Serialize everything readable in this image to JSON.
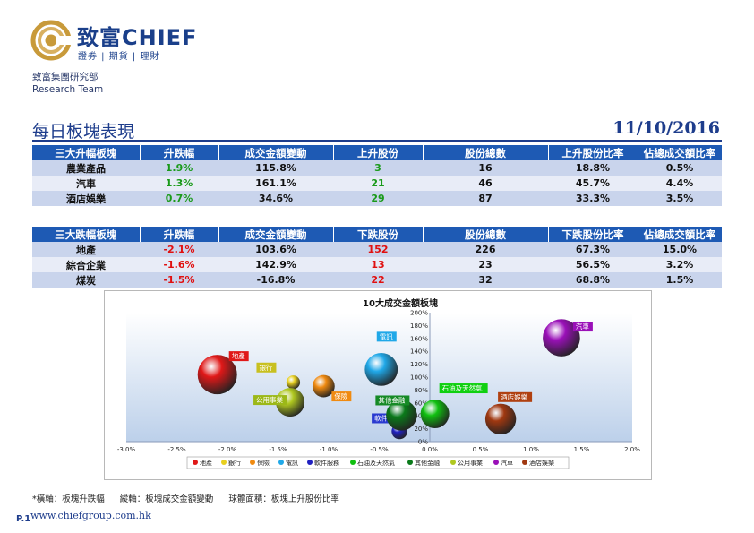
{
  "header": {
    "brand_cn": "致富",
    "brand_en": "CHIEF",
    "tagline": "證券 | 期貨 | 理財",
    "dept_cn": "致富集團研究部",
    "dept_en": "Research Team"
  },
  "page": {
    "title": "每日板塊表現",
    "date": "11/10/2016"
  },
  "top_table": {
    "headers": [
      "三大升幅板塊",
      "升跌幅",
      "成交金額變動",
      "上升股份",
      "股份總數",
      "上升股份比率",
      "佔總成交額比率"
    ],
    "rows": [
      [
        "農業產品",
        "1.9%",
        "115.8%",
        "3",
        "16",
        "18.8%",
        "0.5%"
      ],
      [
        "汽車",
        "1.3%",
        "161.1%",
        "21",
        "46",
        "45.7%",
        "4.4%"
      ],
      [
        "酒店娛樂",
        "0.7%",
        "34.6%",
        "29",
        "87",
        "33.3%",
        "3.5%"
      ]
    ]
  },
  "bottom_table": {
    "headers": [
      "三大跌幅板塊",
      "升跌幅",
      "成交金額變動",
      "下跌股份",
      "股份總數",
      "下跌股份比率",
      "佔總成交額比率"
    ],
    "rows": [
      [
        "地產",
        "-2.1%",
        "103.6%",
        "152",
        "226",
        "67.3%",
        "15.0%"
      ],
      [
        "綜合企業",
        "-1.6%",
        "142.9%",
        "13",
        "23",
        "56.5%",
        "3.2%"
      ],
      [
        "煤炭",
        "-1.5%",
        "-16.8%",
        "22",
        "32",
        "68.8%",
        "1.5%"
      ]
    ]
  },
  "colors": {
    "header_blue": "#1e5ab4",
    "title_blue": "#1e3d8c",
    "up_green": "#1a9a1a",
    "down_red": "#e01010"
  },
  "chart_data": {
    "type": "scatter",
    "title": "10大成交金額板塊",
    "xlim": [
      -0.03,
      0.02
    ],
    "ylim": [
      0,
      2.0
    ],
    "x_ticks": [
      "-3.0%",
      "-2.5%",
      "-2.0%",
      "-1.5%",
      "-1.0%",
      "-0.5%",
      "0.0%",
      "0.5%",
      "1.0%",
      "1.5%",
      "2.0%"
    ],
    "y_ticks": [
      "0%",
      "20%",
      "40%",
      "60%",
      "80%",
      "100%",
      "120%",
      "140%",
      "160%",
      "180%",
      "200%"
    ],
    "legend_position": "bottom",
    "series": [
      {
        "name": "地產",
        "x": -0.021,
        "y": 1.04,
        "size": 15.0,
        "color": "#e01818",
        "label_color": "#e01818"
      },
      {
        "name": "銀行",
        "x": -0.0135,
        "y": 0.92,
        "size": 3.0,
        "color": "#e8d020",
        "label_color": "#c8c020"
      },
      {
        "name": "保險",
        "x": -0.0105,
        "y": 0.86,
        "size": 7.0,
        "color": "#f08a10",
        "label_color": "#f08a10"
      },
      {
        "name": "電訊",
        "x": -0.0048,
        "y": 1.12,
        "size": 12.0,
        "color": "#20a8e8",
        "label_color": "#20a8e8"
      },
      {
        "name": "軟件服務",
        "x": -0.003,
        "y": 0.16,
        "size": 4.0,
        "color": "#2020c0",
        "label_color": "#2a3ad0"
      },
      {
        "name": "石油及天然氣",
        "x": 0.0005,
        "y": 0.43,
        "size": 10.0,
        "color": "#10c010",
        "label_color": "#10d010"
      },
      {
        "name": "其他金融",
        "x": -0.0028,
        "y": 0.41,
        "size": 11.0,
        "color": "#0a7a1a",
        "label_color": "#168a26"
      },
      {
        "name": "公用事業",
        "x": -0.0138,
        "y": 0.61,
        "size": 10.0,
        "color": "#b0c820",
        "label_color": "#9cb818"
      },
      {
        "name": "汽車",
        "x": 0.013,
        "y": 1.61,
        "size": 14.0,
        "color": "#9a10b8",
        "label_color": "#9a10b8"
      },
      {
        "name": "酒店娛樂",
        "x": 0.007,
        "y": 0.35,
        "size": 11.0,
        "color": "#a03810",
        "label_color": "#b04010"
      }
    ]
  },
  "footnote": {
    "x_note": "*橫軸：板塊升跌幅",
    "y_note": "縱軸：板塊成交金額變動",
    "size_note": "球體面積：板塊上升股份比率"
  },
  "footer": {
    "page_number": "P.1",
    "website": "www.chiefgroup.com.hk"
  }
}
